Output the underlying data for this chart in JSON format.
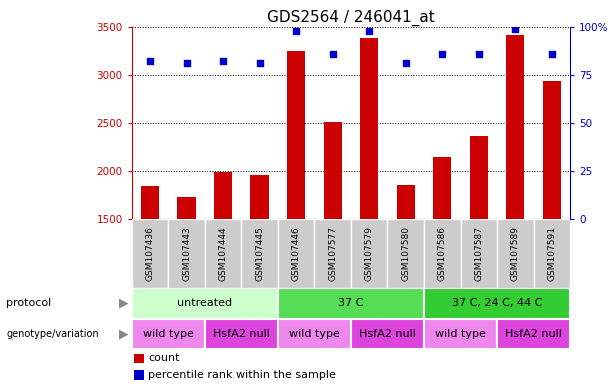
{
  "title": "GDS2564 / 246041_at",
  "samples": [
    "GSM107436",
    "GSM107443",
    "GSM107444",
    "GSM107445",
    "GSM107446",
    "GSM107577",
    "GSM107579",
    "GSM107580",
    "GSM107586",
    "GSM107587",
    "GSM107589",
    "GSM107591"
  ],
  "counts": [
    1840,
    1730,
    1990,
    1960,
    3250,
    2510,
    3380,
    1850,
    2140,
    2360,
    3420,
    2940
  ],
  "percentile_ranks": [
    82,
    81,
    82,
    81,
    98,
    86,
    98,
    81,
    86,
    86,
    99,
    86
  ],
  "ylim_left": [
    1500,
    3500
  ],
  "ylim_right": [
    0,
    100
  ],
  "yticks_left": [
    1500,
    2000,
    2500,
    3000,
    3500
  ],
  "yticks_right": [
    0,
    25,
    50,
    75,
    100
  ],
  "ytick_right_labels": [
    "0",
    "25",
    "50",
    "75",
    "100%"
  ],
  "bar_color": "#cc0000",
  "dot_color": "#0000cc",
  "protocol_groups": [
    {
      "label": "untreated",
      "start": 0,
      "end": 4,
      "color": "#ccffcc"
    },
    {
      "label": "37 C",
      "start": 4,
      "end": 8,
      "color": "#55dd55"
    },
    {
      "label": "37 C, 24 C, 44 C",
      "start": 8,
      "end": 12,
      "color": "#33cc33"
    }
  ],
  "genotype_groups": [
    {
      "label": "wild type",
      "start": 0,
      "end": 2,
      "color": "#ee88ee"
    },
    {
      "label": "HsfA2 null",
      "start": 2,
      "end": 4,
      "color": "#dd44dd"
    },
    {
      "label": "wild type",
      "start": 4,
      "end": 6,
      "color": "#ee88ee"
    },
    {
      "label": "HsfA2 null",
      "start": 6,
      "end": 8,
      "color": "#dd44dd"
    },
    {
      "label": "wild type",
      "start": 8,
      "end": 10,
      "color": "#ee88ee"
    },
    {
      "label": "HsfA2 null",
      "start": 10,
      "end": 12,
      "color": "#dd44dd"
    }
  ],
  "protocol_label": "protocol",
  "genotype_label": "genotype/variation",
  "legend_count_label": "count",
  "legend_percentile_label": "percentile rank within the sample",
  "title_fontsize": 11,
  "tick_fontsize": 7.5,
  "row_label_fontsize": 8,
  "sample_fontsize": 6.5,
  "legend_fontsize": 8,
  "bar_width": 0.5
}
